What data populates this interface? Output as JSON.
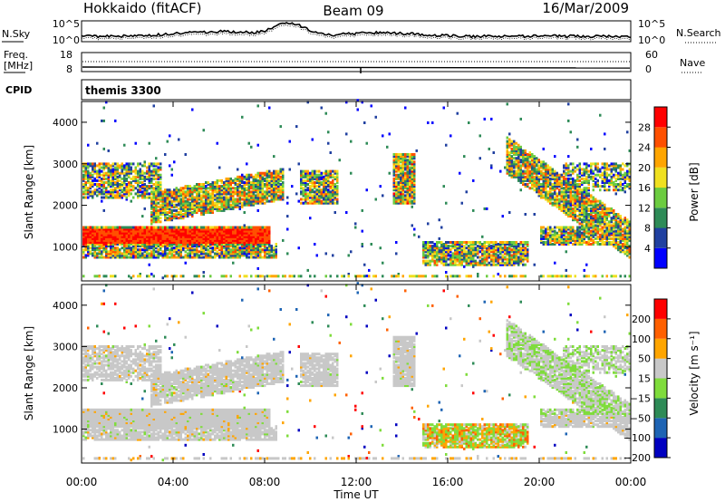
{
  "header": {
    "left": "Hokkaido (fitACF)",
    "center": "Beam 09",
    "right": "16/Mar/2009"
  },
  "strips": {
    "nsky_label": "N.Sky",
    "nsky_ticks": [
      "10^5",
      "10^0"
    ],
    "nsearch_label": "N.Search",
    "nsearch_ticks": [
      "10^5",
      "10^0"
    ],
    "freq_label_1": "Freq.",
    "freq_label_2": "[MHz]",
    "freq_ticks": [
      "18",
      "8"
    ],
    "nave_label": "Nave",
    "nave_ticks": [
      "60",
      "0"
    ],
    "cpid_label": "CPID",
    "cpid_value": "themis 3300"
  },
  "chart_data": [
    {
      "type": "heatmap",
      "title": "",
      "ylabel": "Slant Range [km]",
      "ylim": [
        180,
        4500
      ],
      "yticks": [
        "4000",
        "3000",
        "2000",
        "1000"
      ],
      "colorbar_label": "Power [dB]",
      "colorbar_ticks": [
        "28",
        "24",
        "20",
        "16",
        "12",
        "8",
        "4"
      ],
      "colors": [
        "#0000ff",
        "#2040a0",
        "#2e8b57",
        "#6ccc40",
        "#f0e020",
        "#ffa500",
        "#ff5000",
        "#ff0000"
      ]
    },
    {
      "type": "heatmap",
      "title": "",
      "ylabel": "Slant Range [km]",
      "ylim": [
        180,
        4500
      ],
      "yticks": [
        "4000",
        "3000",
        "2000",
        "1000"
      ],
      "colorbar_label": "Velocity [m s⁻¹]",
      "colorbar_ticks": [
        "200",
        "100",
        "50",
        "15",
        "−15",
        "−50",
        "−100",
        "−200"
      ],
      "colors": [
        "#0000c0",
        "#1e64b4",
        "#2e8b57",
        "#7fdc3c",
        "#c8c8c8",
        "#ffa500",
        "#ff6000",
        "#ff0000"
      ]
    }
  ],
  "xaxis": {
    "label": "Time UT",
    "ticks": [
      "00:00",
      "04:00",
      "08:00",
      "12:00",
      "16:00",
      "20:00",
      "00:00"
    ]
  }
}
